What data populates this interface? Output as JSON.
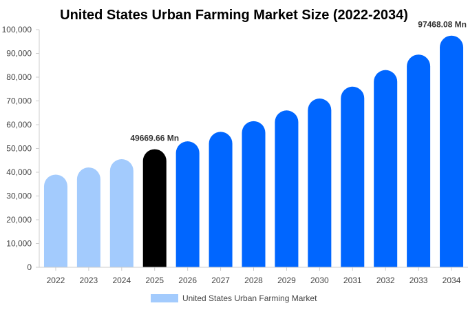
{
  "chart_data": {
    "type": "bar",
    "title": "United States Urban Farming Market Size (2022-2034)",
    "categories": [
      "2022",
      "2023",
      "2024",
      "2025",
      "2026",
      "2027",
      "2028",
      "2029",
      "2030",
      "2031",
      "2032",
      "2033",
      "2034"
    ],
    "series": [
      {
        "name": "United States Urban Farming Market",
        "values": [
          39000,
          42000,
          45500,
          49669.66,
          53000,
          57000,
          61500,
          66000,
          71000,
          76000,
          83000,
          89500,
          97468.08
        ]
      }
    ],
    "ylim": [
      0,
      100000
    ],
    "yticks": [
      "0",
      "10,000",
      "20,000",
      "30,000",
      "40,000",
      "50,000",
      "60,000",
      "70,000",
      "80,000",
      "90,000",
      "100,000"
    ],
    "data_labels": [
      {
        "index": 3,
        "text": "49669.66 Mn"
      },
      {
        "index": 12,
        "text": "97468.08 Mn"
      }
    ],
    "bar_colors": [
      "#a3cbfd",
      "#a3cbfd",
      "#a3cbfd",
      "#000000",
      "#0066ff",
      "#0066ff",
      "#0066ff",
      "#0066ff",
      "#0066ff",
      "#0066ff",
      "#0066ff",
      "#0066ff",
      "#0066ff"
    ],
    "legend_color": "#a3cbfd",
    "legend_position": "bottom-center",
    "grid": false
  }
}
